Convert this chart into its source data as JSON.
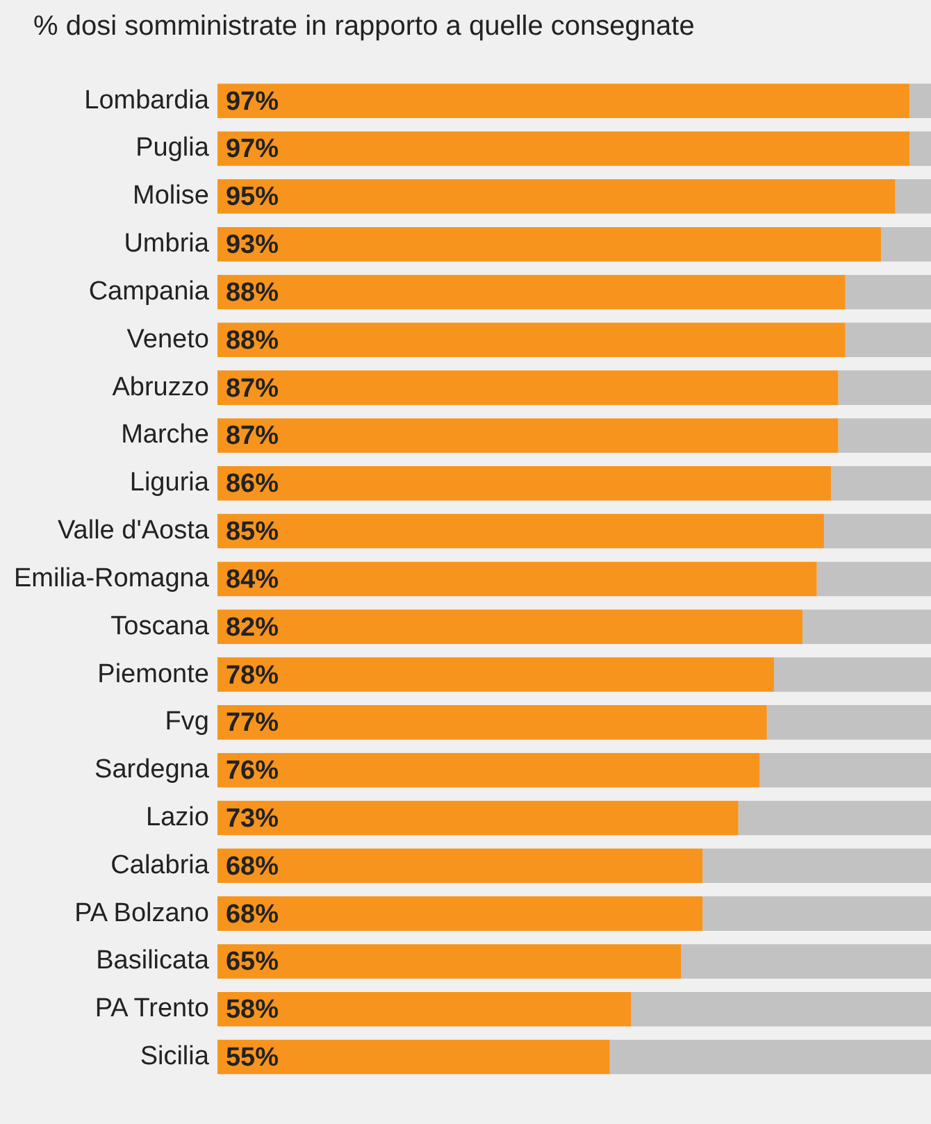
{
  "chart_data": {
    "type": "bar",
    "orientation": "horizontal",
    "stacked": true,
    "title": "% dosi somministrate in rapporto a quelle consegnate",
    "categories": [
      "Lombardia",
      "Puglia",
      "Molise",
      "Umbria",
      "Campania",
      "Veneto",
      "Abruzzo",
      "Marche",
      "Liguria",
      "Valle d'Aosta",
      "Emilia-Romagna",
      "Toscana",
      "Piemonte",
      "Fvg",
      "Sardegna",
      "Lazio",
      "Calabria",
      "PA Bolzano",
      "Basilicata",
      "PA Trento",
      "Sicilia"
    ],
    "series": [
      {
        "color": "#f7941d",
        "values": [
          97,
          97,
          95,
          93,
          88,
          88,
          87,
          87,
          86,
          85,
          84,
          82,
          78,
          77,
          76,
          73,
          68,
          68,
          65,
          58,
          55
        ],
        "value_labels": [
          "97%",
          "97%",
          "95%",
          "93%",
          "88%",
          "88%",
          "87%",
          "87%",
          "86%",
          "85%",
          "84%",
          "82%",
          "78%",
          "77%",
          "76%",
          "73%",
          "68%",
          "68%",
          "65%",
          "58%",
          "55%"
        ]
      },
      {
        "color": "#c2c2c2",
        "values": [
          3,
          3,
          5,
          7,
          12,
          12,
          13,
          13,
          14,
          15,
          16,
          18,
          22,
          23,
          24,
          27,
          32,
          32,
          35,
          42,
          45
        ]
      }
    ],
    "xlim": [
      0,
      100
    ],
    "tick_labels": "y",
    "legend": false,
    "grid": false
  }
}
